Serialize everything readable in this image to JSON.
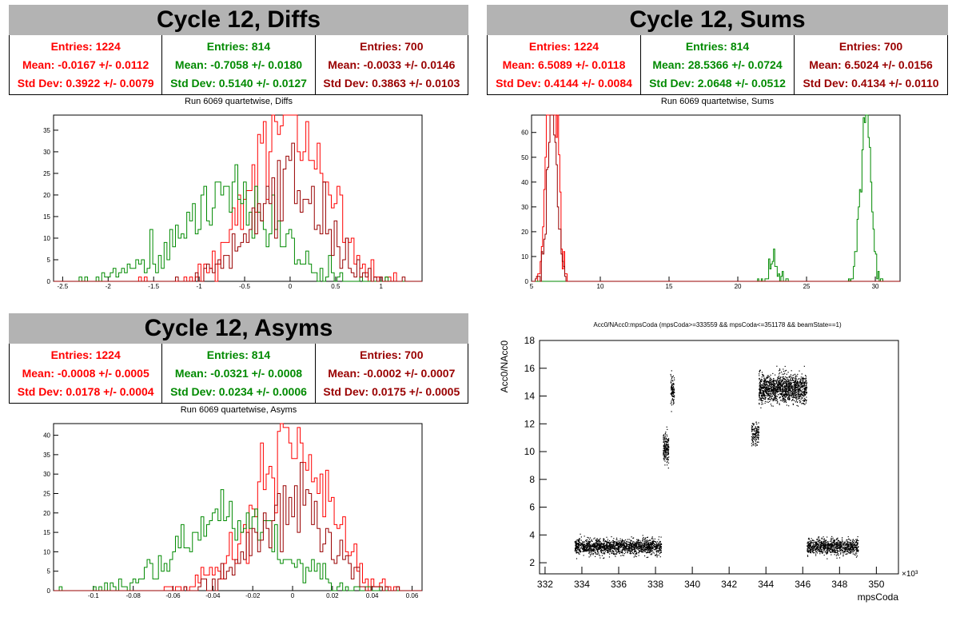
{
  "panels": {
    "diffs": {
      "title": "Cycle 12, Diffs",
      "subtitle": "Run 6069 quartetwise, Diffs",
      "stats": [
        {
          "entries": "Entries: 1224",
          "mean": "Mean: -0.0167 +/- 0.0112",
          "std": "Std Dev: 0.3922 +/- 0.0079",
          "color": "#ff0000"
        },
        {
          "entries": "Entries: 814",
          "mean": "Mean: -0.7058 +/- 0.0180",
          "std": "Std Dev: 0.5140 +/- 0.0127",
          "color": "#008a00"
        },
        {
          "entries": "Entries: 700",
          "mean": "Mean: -0.0033 +/- 0.0146",
          "std": "Std Dev: 0.3863 +/- 0.0103",
          "color": "#990000"
        }
      ]
    },
    "sums": {
      "title": "Cycle 12, Sums",
      "subtitle": "Run 6069 quartetwise, Sums",
      "stats": [
        {
          "entries": "Entries: 1224",
          "mean": "Mean: 6.5089 +/- 0.0118",
          "std": "Std Dev: 0.4144 +/- 0.0084",
          "color": "#ff0000"
        },
        {
          "entries": "Entries: 814",
          "mean": "Mean: 28.5366 +/- 0.0724",
          "std": "Std Dev: 2.0648 +/- 0.0512",
          "color": "#008a00"
        },
        {
          "entries": "Entries: 700",
          "mean": "Mean: 6.5024 +/- 0.0156",
          "std": "Std Dev: 0.4134 +/- 0.0110",
          "color": "#990000"
        }
      ]
    },
    "asyms": {
      "title": "Cycle 12, Asyms",
      "subtitle": "Run 6069 quartetwise, Asyms",
      "stats": [
        {
          "entries": "Entries: 1224",
          "mean": "Mean: -0.0008 +/- 0.0005",
          "std": "Std Dev: 0.0178 +/- 0.0004",
          "color": "#ff0000"
        },
        {
          "entries": "Entries: 814",
          "mean": "Mean: -0.0321 +/- 0.0008",
          "std": "Std Dev: 0.0234 +/- 0.0006",
          "color": "#008a00"
        },
        {
          "entries": "Entries: 700",
          "mean": "Mean: -0.0002 +/- 0.0007",
          "std": "Std Dev: 0.0175 +/- 0.0005",
          "color": "#990000"
        }
      ]
    },
    "scatter": {
      "title": "Acc0/NAcc0:mpsCoda (mpsCoda>=333559 && mpsCoda<=351178 && beamState==1)"
    }
  },
  "chart_data": [
    {
      "type": "histogram",
      "id": "diffs",
      "xlim": [
        -2.6,
        1.45
      ],
      "ylim": [
        0,
        38.5
      ],
      "xticks": [
        -2.5,
        -2,
        -1.5,
        -1,
        -0.5,
        0,
        0.5,
        1
      ],
      "yticks": [
        5,
        10,
        15,
        20,
        25,
        30,
        35
      ],
      "series": [
        {
          "color": "#ff0000",
          "mean": -0.0167,
          "std": 0.3922,
          "entries": 1224
        },
        {
          "color": "#008a00",
          "mean": -0.7058,
          "std": 0.514,
          "entries": 814
        },
        {
          "color": "#990000",
          "mean": -0.0033,
          "std": 0.3863,
          "entries": 700
        }
      ]
    },
    {
      "type": "histogram",
      "id": "sums",
      "xlim": [
        5,
        31.8
      ],
      "ylim": [
        0,
        67
      ],
      "xticks": [
        5,
        10,
        15,
        20,
        25,
        30
      ],
      "yticks": [
        10,
        20,
        30,
        40,
        50,
        60
      ],
      "series": [
        {
          "color": "#ff0000",
          "mean": 6.5089,
          "std": 0.4144,
          "entries": 1224
        },
        {
          "color": "#008a00",
          "mean": 28.5366,
          "std": 2.0648,
          "entries": 814
        },
        {
          "color": "#990000",
          "mean": 6.5024,
          "std": 0.4134,
          "entries": 700
        }
      ]
    },
    {
      "type": "histogram",
      "id": "asyms",
      "xlim": [
        -0.12,
        0.065
      ],
      "ylim": [
        0,
        43
      ],
      "xticks": [
        -0.1,
        -0.08,
        -0.06,
        -0.04,
        -0.02,
        0,
        0.02,
        0.04,
        0.06
      ],
      "yticks": [
        5,
        10,
        15,
        20,
        25,
        30,
        35,
        40
      ],
      "series": [
        {
          "color": "#ff0000",
          "mean": -0.0008,
          "std": 0.0178,
          "entries": 1224
        },
        {
          "color": "#008a00",
          "mean": -0.0321,
          "std": 0.0234,
          "entries": 814
        },
        {
          "color": "#990000",
          "mean": -0.0002,
          "std": 0.0175,
          "entries": 700
        }
      ]
    },
    {
      "type": "scatter",
      "id": "scatter",
      "xlabel": "mpsCoda",
      "ylabel": "Acc0/NAcc0",
      "x_exponent": "×10³",
      "xlim": [
        331.7,
        351.2
      ],
      "ylim": [
        1.2,
        18
      ],
      "xticks": [
        332,
        334,
        336,
        338,
        340,
        342,
        344,
        346,
        348,
        350
      ],
      "yticks": [
        2,
        4,
        6,
        8,
        10,
        12,
        14,
        16,
        18
      ],
      "clusters": [
        {
          "x": [
            333.6,
            338.3
          ],
          "y_center": 3.2,
          "y_spread": 0.6,
          "points": 1600
        },
        {
          "x": [
            338.4,
            338.7
          ],
          "y_center": 10.3,
          "y_spread": 1.1,
          "points": 180
        },
        {
          "x": [
            338.8,
            339.0
          ],
          "y_center": 14.5,
          "y_spread": 1.2,
          "points": 110
        },
        {
          "x": [
            343.2,
            343.6
          ],
          "y_center": 11.3,
          "y_spread": 1.0,
          "points": 130
        },
        {
          "x": [
            343.6,
            346.2
          ],
          "y_center": 14.6,
          "y_spread": 1.1,
          "points": 1400
        },
        {
          "x": [
            346.2,
            349.0
          ],
          "y_center": 3.2,
          "y_spread": 0.6,
          "points": 900
        }
      ]
    }
  ]
}
